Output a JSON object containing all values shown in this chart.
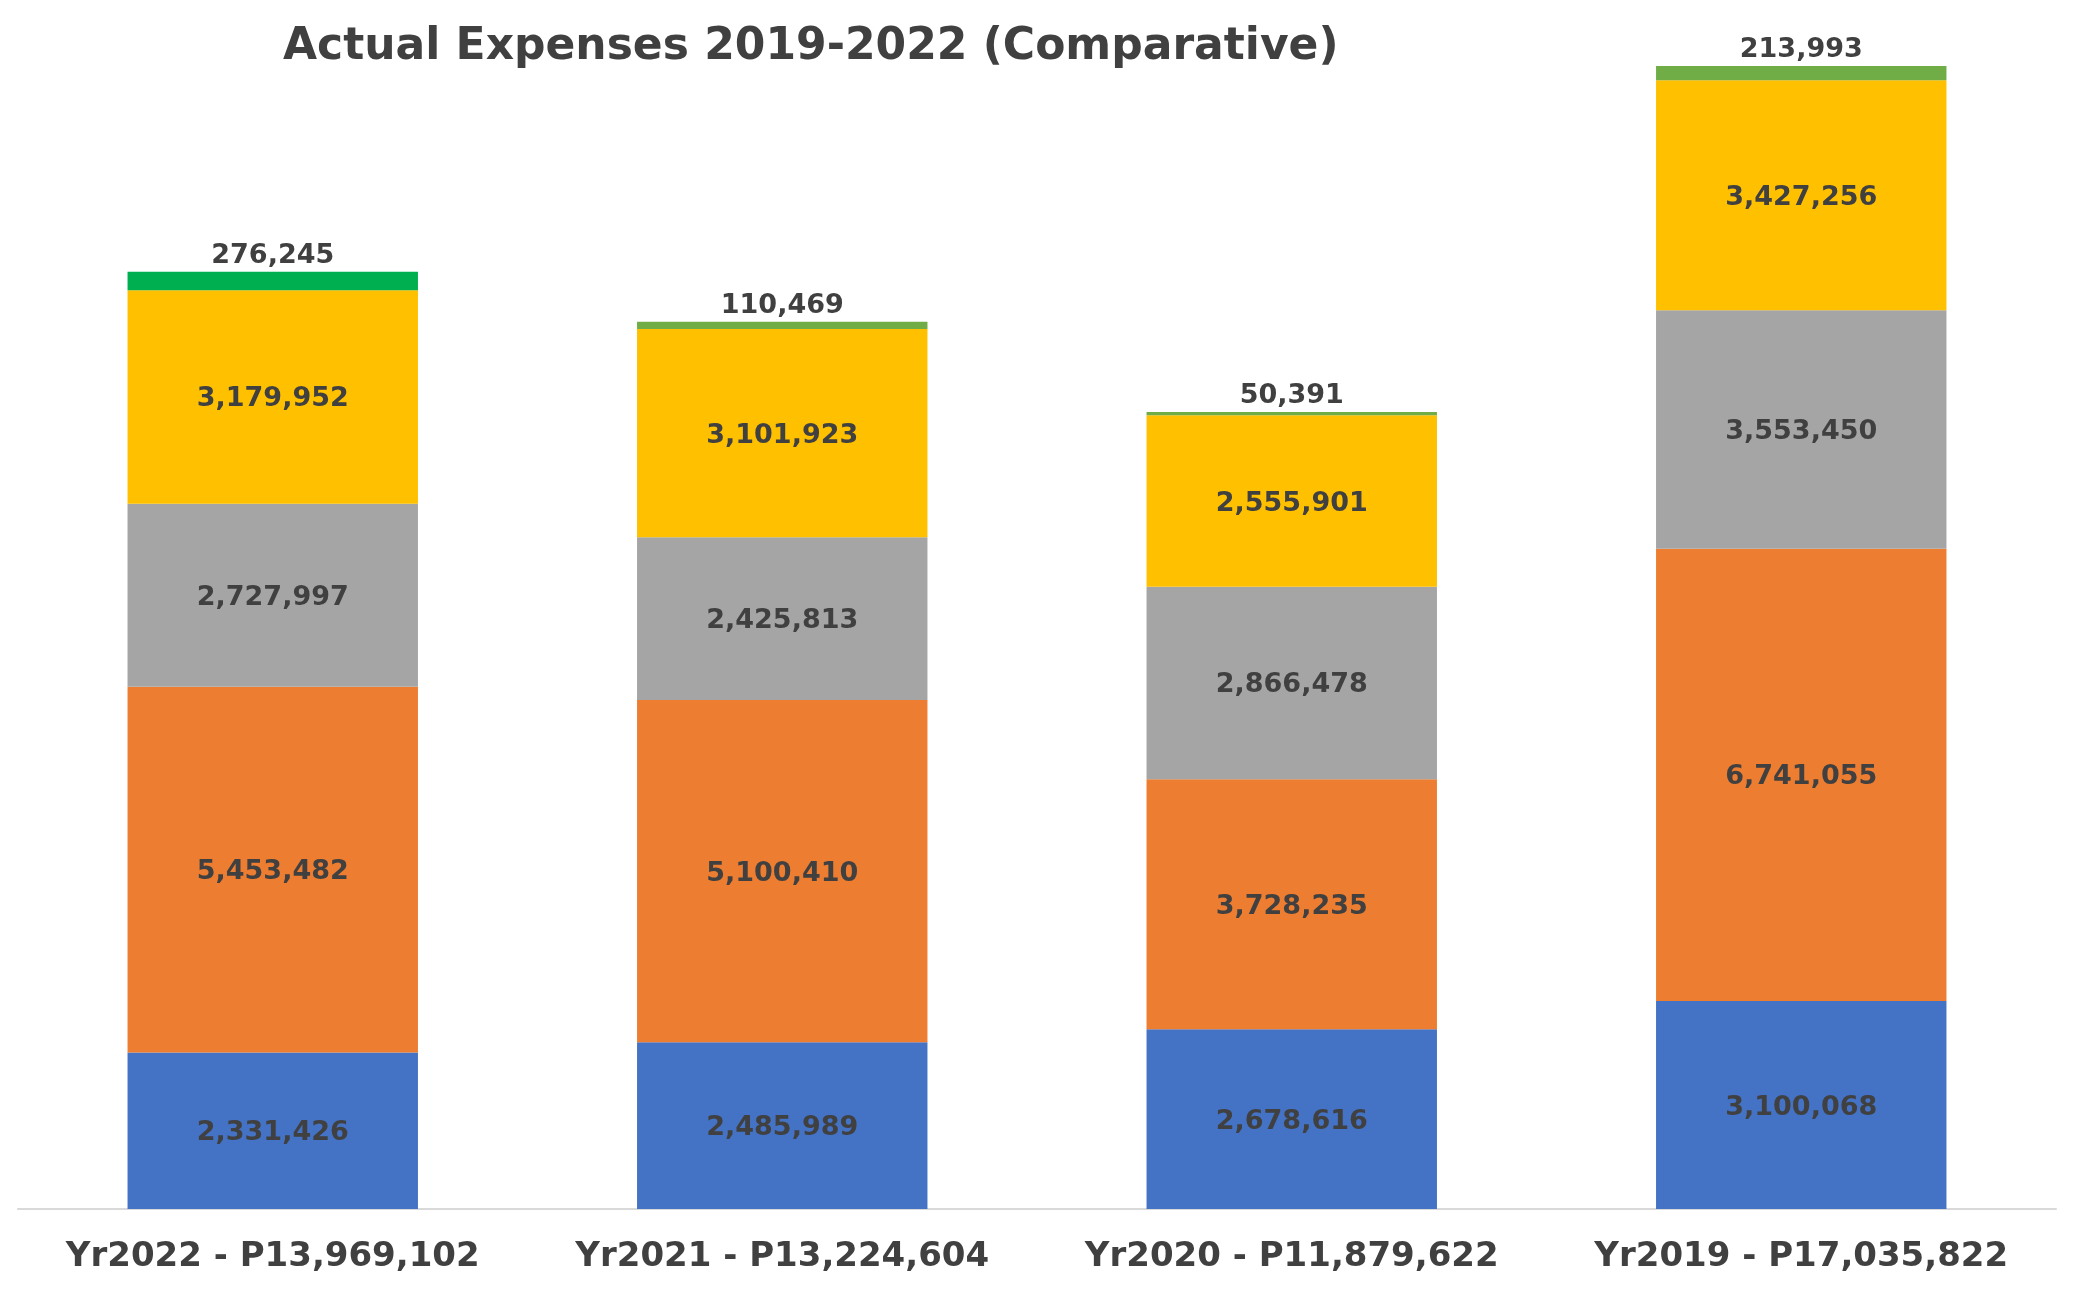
{
  "chart_data": {
    "type": "bar",
    "title": "Actual Expenses 2019-2022 (Comparative)",
    "stacked": true,
    "categories": [
      "Yr2022 - P13,969,102",
      "Yr2021 - P13,224,604",
      "Yr2020 - P11,879,622",
      "Yr2019 - P17,035,822"
    ],
    "series": [
      {
        "color": "#4472c4",
        "values": [
          2331426,
          2485989,
          2678616,
          3100068
        ],
        "value_labels": [
          "2,331,426",
          "2,485,989",
          "2,678,616",
          "3,100,068"
        ]
      },
      {
        "color": "#ed7d31",
        "values": [
          5453482,
          5100410,
          3728235,
          6741055
        ],
        "value_labels": [
          "5,453,482",
          "5,100,410",
          "3,728,235",
          "6,741,055"
        ]
      },
      {
        "color": "#a5a5a5",
        "values": [
          2727997,
          2425813,
          2866478,
          3553450
        ],
        "value_labels": [
          "2,727,997",
          "2,425,813",
          "2,866,478",
          "3,553,450"
        ]
      },
      {
        "color": "#ffc000",
        "values": [
          3179952,
          3101923,
          2555901,
          3427256
        ],
        "value_labels": [
          "3,179,952",
          "3,101,923",
          "2,555,901",
          "3,427,256"
        ]
      },
      {
        "color": "#70ad47",
        "colors": [
          "#00b050",
          "#70ad47",
          "#70ad47",
          "#70ad47"
        ],
        "values": [
          276245,
          110469,
          50391,
          213993
        ],
        "value_labels": [
          "276,245",
          "110,469",
          "50,391",
          "213,993"
        ]
      }
    ]
  }
}
